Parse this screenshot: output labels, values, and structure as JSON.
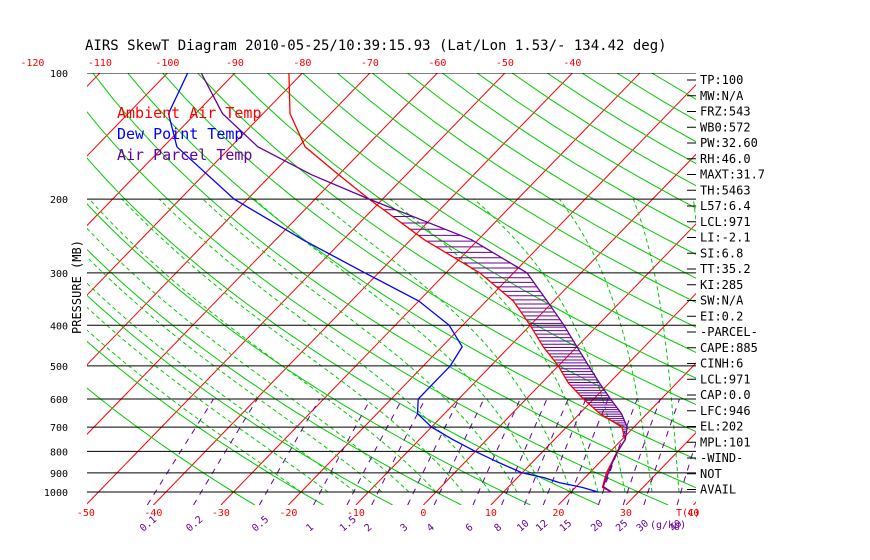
{
  "chart_data": {
    "type": "skew-t",
    "title": "AIRS SkewT Diagram 2010-05-25/10:39:15.93 (Lat/Lon 1.53/- 134.42 deg)",
    "ylabel": "PRESSURE (MB)",
    "xlabel_unit": "T(C)",
    "mix_unit": "(g/kg)",
    "log_pressure_axis": true,
    "ylim": [
      1000,
      100
    ],
    "pressure_levels": [
      100,
      200,
      300,
      400,
      500,
      600,
      700,
      800,
      900,
      1000
    ],
    "bottom_temp_ticks": [
      -50,
      -40,
      -30,
      -20,
      -10,
      0,
      10,
      20,
      30,
      40
    ],
    "top_temp_ticks": [
      -120,
      -110,
      -100,
      -90,
      -80,
      -70,
      -60,
      -50,
      -40
    ],
    "mixing_ratio_labels": [
      "0.1",
      "0.2",
      "0.5",
      "1",
      "1.5",
      "2",
      "3",
      "4",
      "6",
      "8",
      "10",
      "12",
      "15",
      "20",
      "25",
      "30",
      "40"
    ],
    "legend": [
      {
        "name": "Ambient Air Temp",
        "color": "#ff0000"
      },
      {
        "name": "Dew Point Temp",
        "color": "#0000ff"
      },
      {
        "name": "Air Parcel Temp",
        "color": "#660099"
      }
    ],
    "series": [
      {
        "name": "Ambient Air Temp",
        "color": "#ff0000",
        "points": [
          [
            1000,
            26
          ],
          [
            975,
            24
          ],
          [
            950,
            23.5
          ],
          [
            900,
            22.5
          ],
          [
            850,
            21.8
          ],
          [
            800,
            21
          ],
          [
            750,
            20.5
          ],
          [
            700,
            18.2
          ],
          [
            650,
            13
          ],
          [
            600,
            8.5
          ],
          [
            550,
            4
          ],
          [
            500,
            0
          ],
          [
            450,
            -5
          ],
          [
            400,
            -10
          ],
          [
            350,
            -16
          ],
          [
            300,
            -25
          ],
          [
            250,
            -38
          ],
          [
            200,
            -52
          ],
          [
            175,
            -60
          ],
          [
            150,
            -69
          ],
          [
            125,
            -76
          ],
          [
            100,
            -82
          ]
        ]
      },
      {
        "name": "Dew Point Temp",
        "color": "#0000ff",
        "points": [
          [
            1000,
            24
          ],
          [
            975,
            21
          ],
          [
            950,
            17
          ],
          [
            925,
            14
          ],
          [
            900,
            10
          ],
          [
            850,
            5
          ],
          [
            800,
            0
          ],
          [
            750,
            -5
          ],
          [
            700,
            -10
          ],
          [
            650,
            -14
          ],
          [
            600,
            -16
          ],
          [
            550,
            -16
          ],
          [
            500,
            -16
          ],
          [
            450,
            -17
          ],
          [
            400,
            -22
          ],
          [
            350,
            -30
          ],
          [
            300,
            -42
          ],
          [
            250,
            -56
          ],
          [
            200,
            -72
          ],
          [
            150,
            -88
          ],
          [
            125,
            -94
          ],
          [
            100,
            -97
          ]
        ]
      },
      {
        "name": "Air Parcel Temp",
        "color": "#660099",
        "points": [
          [
            1000,
            26
          ],
          [
            971,
            24
          ],
          [
            900,
            22.8
          ],
          [
            850,
            21.9
          ],
          [
            800,
            21.1
          ],
          [
            750,
            20.5
          ],
          [
            700,
            19
          ],
          [
            650,
            16.2
          ],
          [
            600,
            12.5
          ],
          [
            550,
            8.6
          ],
          [
            500,
            4.5
          ],
          [
            450,
            0
          ],
          [
            400,
            -5
          ],
          [
            350,
            -11
          ],
          [
            300,
            -18
          ],
          [
            250,
            -31
          ],
          [
            200,
            -52
          ],
          [
            175,
            -64
          ],
          [
            150,
            -76
          ],
          [
            125,
            -86
          ],
          [
            100,
            -95
          ]
        ]
      }
    ],
    "indices": [
      "TP:100",
      "MW:N/A",
      "FRZ:543",
      "WB0:572",
      "PW:32.60",
      "RH:46.0",
      "MAXT:31.7",
      "TH:5463",
      "L57:6.4",
      "LCL:971",
      "LI:-2.1",
      "SI:6.8",
      "TT:35.2",
      "KI:285",
      "SW:N/A",
      "EI:0.2",
      "-PARCEL-",
      "CAPE:885",
      "CINH:6",
      "LCL:971",
      "CAP:0.0",
      "LFC:946",
      "EL:202",
      "MPL:101",
      "-WIND-",
      "NOT",
      "AVAIL"
    ],
    "colors": {
      "isotherm": "#ff0000",
      "dry_adiabat": "#00cc00",
      "moist_adiabat": "#00cc00",
      "mixing_ratio": "#660099",
      "isobar": "#000000",
      "temp_tick_labels": "#ff0000",
      "mix_labels": "#660099",
      "cape_hatch": "#660099"
    }
  }
}
